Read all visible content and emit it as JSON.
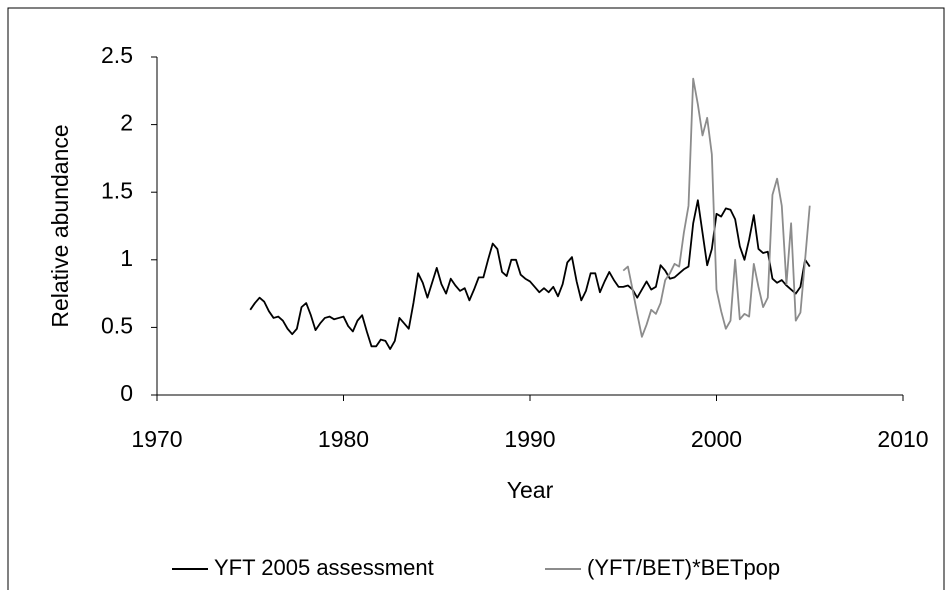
{
  "chart_data": {
    "type": "line",
    "xlabel": "Year",
    "ylabel": "Relative abundance",
    "xlim": [
      1970,
      2010
    ],
    "xticks": [
      1970,
      1980,
      1990,
      2000,
      2010
    ],
    "ylim": [
      0,
      2.5
    ],
    "yticks": [
      0,
      0.5,
      1,
      1.5,
      2,
      2.5
    ],
    "grid": false,
    "legend": "bottom",
    "series": [
      {
        "name": "YFT 2005 assessment",
        "color": "#000000",
        "x": [
          1975,
          1975.25,
          1975.5,
          1975.75,
          1976,
          1976.25,
          1976.5,
          1976.75,
          1977,
          1977.25,
          1977.5,
          1977.75,
          1978,
          1978.25,
          1978.5,
          1978.75,
          1979,
          1979.25,
          1979.5,
          1979.75,
          1980,
          1980.25,
          1980.5,
          1980.75,
          1981,
          1981.25,
          1981.5,
          1981.75,
          1982,
          1982.25,
          1982.5,
          1982.75,
          1983,
          1983.25,
          1983.5,
          1983.75,
          1984,
          1984.25,
          1984.5,
          1984.75,
          1985,
          1985.25,
          1985.5,
          1985.75,
          1986,
          1986.25,
          1986.5,
          1986.75,
          1987,
          1987.25,
          1987.5,
          1987.75,
          1988,
          1988.25,
          1988.5,
          1988.75,
          1989,
          1989.25,
          1989.5,
          1989.75,
          1990,
          1990.25,
          1990.5,
          1990.75,
          1991,
          1991.25,
          1991.5,
          1991.75,
          1992,
          1992.25,
          1992.5,
          1992.75,
          1993,
          1993.25,
          1993.5,
          1993.75,
          1994,
          1994.25,
          1994.5,
          1994.75,
          1995,
          1995.25,
          1995.5,
          1995.75,
          1996,
          1996.25,
          1996.5,
          1996.75,
          1997,
          1997.25,
          1997.5,
          1997.75,
          1998,
          1998.25,
          1998.5,
          1998.75,
          1999,
          1999.25,
          1999.5,
          1999.75,
          2000,
          2000.25,
          2000.5,
          2000.75,
          2001,
          2001.25,
          2001.5,
          2001.75,
          2002,
          2002.25,
          2002.5,
          2002.75,
          2003,
          2003.25,
          2003.5,
          2003.75,
          2004,
          2004.25,
          2004.5,
          2004.75,
          2005
        ],
        "values": [
          0.63,
          0.68,
          0.72,
          0.69,
          0.62,
          0.57,
          0.58,
          0.55,
          0.49,
          0.45,
          0.49,
          0.65,
          0.68,
          0.59,
          0.48,
          0.53,
          0.57,
          0.58,
          0.56,
          0.57,
          0.58,
          0.51,
          0.47,
          0.55,
          0.59,
          0.47,
          0.36,
          0.36,
          0.41,
          0.4,
          0.34,
          0.4,
          0.57,
          0.53,
          0.49,
          0.68,
          0.9,
          0.83,
          0.72,
          0.83,
          0.94,
          0.82,
          0.75,
          0.86,
          0.81,
          0.77,
          0.79,
          0.7,
          0.78,
          0.87,
          0.87,
          1.0,
          1.12,
          1.08,
          0.91,
          0.88,
          1.0,
          1.0,
          0.89,
          0.86,
          0.84,
          0.8,
          0.76,
          0.79,
          0.76,
          0.8,
          0.73,
          0.82,
          0.98,
          1.02,
          0.84,
          0.7,
          0.77,
          0.9,
          0.9,
          0.76,
          0.84,
          0.91,
          0.85,
          0.8,
          0.8,
          0.81,
          0.78,
          0.72,
          0.78,
          0.84,
          0.78,
          0.8,
          0.96,
          0.92,
          0.86,
          0.87,
          0.9,
          0.93,
          0.95,
          1.27,
          1.44,
          1.2,
          0.96,
          1.08,
          1.34,
          1.32,
          1.38,
          1.37,
          1.3,
          1.1,
          1.0,
          1.15,
          1.33,
          1.08,
          1.05,
          1.06,
          0.86,
          0.83,
          0.85,
          0.81,
          0.78,
          0.75,
          0.8,
          1.0,
          0.95
        ]
      },
      {
        "name": "(YFT/BET)*BETpop",
        "color": "#8c8c8c",
        "x": [
          1995,
          1995.25,
          1995.5,
          1995.75,
          1996,
          1996.25,
          1996.5,
          1996.75,
          1997,
          1997.25,
          1997.5,
          1997.75,
          1998,
          1998.25,
          1998.5,
          1998.75,
          1999,
          1999.25,
          1999.5,
          1999.75,
          2000,
          2000.25,
          2000.5,
          2000.75,
          2001,
          2001.25,
          2001.5,
          2001.75,
          2002,
          2002.25,
          2002.5,
          2002.75,
          2003,
          2003.25,
          2003.5,
          2003.75,
          2004,
          2004.25,
          2004.5,
          2004.75,
          2005
        ],
        "values": [
          0.92,
          0.95,
          0.78,
          0.6,
          0.43,
          0.52,
          0.63,
          0.6,
          0.68,
          0.85,
          0.9,
          0.97,
          0.95,
          1.2,
          1.4,
          2.34,
          2.15,
          1.92,
          2.05,
          1.78,
          0.78,
          0.62,
          0.49,
          0.55,
          1.0,
          0.56,
          0.6,
          0.58,
          0.97,
          0.8,
          0.65,
          0.72,
          1.48,
          1.6,
          1.4,
          0.82,
          1.27,
          0.55,
          0.61,
          1.0,
          1.4
        ]
      }
    ]
  }
}
